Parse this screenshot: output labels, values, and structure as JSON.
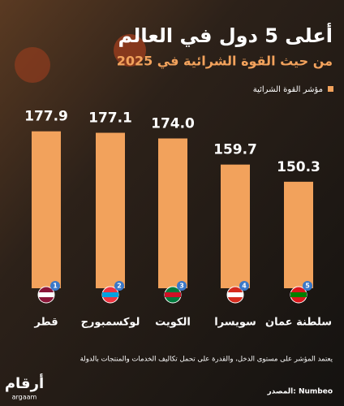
{
  "chart_data": {
    "type": "bar",
    "title": "أعلى 5 دول في العالم",
    "subtitle": "من حيث القوة الشرائية في 2025",
    "legend": "مؤشر القوة الشرائية",
    "categories": [
      "قطر",
      "لوكسمبورج",
      "الكويت",
      "سويسرا",
      "سلطنة عمان"
    ],
    "ranks": [
      1,
      2,
      3,
      4,
      5
    ],
    "values": [
      177.9,
      177.1,
      174.0,
      159.7,
      150.3
    ],
    "value_labels": [
      "177.9",
      "177.1",
      "174.0",
      "159.7",
      "150.3"
    ],
    "color": "#f2a25c",
    "ylim": [
      92,
      180
    ],
    "note": "يعتمد المؤشر على مستوى الدخل، والقدرة على تحمل تكاليف الخدمات والمنتجات بالدولة",
    "source": "المصدر: Numbeo",
    "logo": "أرقام",
    "logo_sub": "argaam"
  }
}
